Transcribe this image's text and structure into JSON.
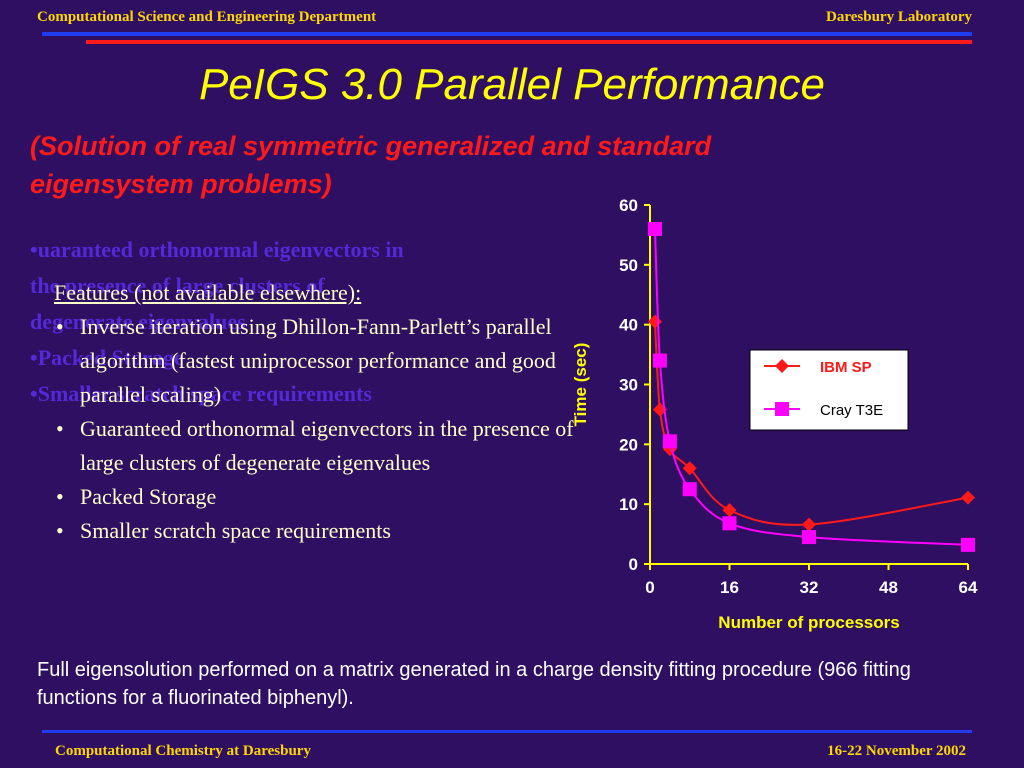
{
  "header": {
    "left": "Computational Science and Engineering Department",
    "right": "Daresbury Laboratory"
  },
  "slide": {
    "title": "PeIGS 3.0 Parallel Performance",
    "subtitle_line1": "(Solution of real symmetric generalized and standard",
    "subtitle_line2": "eigensystem problems)",
    "ghost_lines": [
      "•uaranteed orthonormal eigenvectors in",
      "the presence of large clusters of",
      "degenerate eigenvalues",
      "•Packed Storage",
      "•Smaller scratch space requirements"
    ],
    "features_heading": "Features (not available elsewhere):",
    "features": [
      "Inverse iteration using Dhillon-Fann-Parlett’s parallel algorithm (fastest uniprocessor performance and good parallel scaling)",
      "Guaranteed orthonormal eigenvectors in the presence of large clusters of degenerate eigenvalues",
      "Packed Storage",
      "Smaller scratch space requirements"
    ],
    "footnote": "Full eigensolution performed on a matrix generated in a charge density fitting procedure (966 fitting functions for a fluorinated biphenyl)."
  },
  "footer": {
    "left": "Computational Chemistry at Daresbury",
    "right": "16-22 November 2002"
  },
  "chart_data": {
    "type": "line",
    "xlabel": "Number of processors",
    "ylabel": "Time (sec)",
    "xlim": [
      0,
      64
    ],
    "ylim": [
      0,
      60
    ],
    "xticks": [
      0,
      16,
      32,
      48,
      64
    ],
    "yticks": [
      0,
      10,
      20,
      30,
      40,
      50,
      60
    ],
    "grid": false,
    "legend": "right",
    "series": [
      {
        "name": "IBM SP",
        "color": "#ff1a1a",
        "marker": "diamond",
        "x": [
          1,
          2,
          4,
          8,
          16,
          32,
          64
        ],
        "y": [
          40.5,
          25.8,
          19.2,
          16.0,
          9.0,
          6.6,
          11.1
        ]
      },
      {
        "name": "Cray T3E",
        "color": "#ff00ff",
        "marker": "square",
        "x": [
          1,
          2,
          4,
          8,
          16,
          32,
          64
        ],
        "y": [
          56.0,
          34.0,
          20.5,
          12.5,
          6.8,
          4.5,
          3.2
        ]
      }
    ]
  }
}
